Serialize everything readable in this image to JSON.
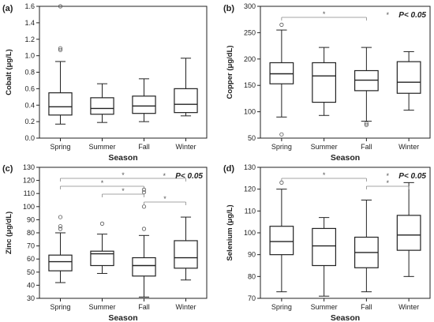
{
  "chart_data": [
    {
      "panel_label": "(a)",
      "type": "boxplot",
      "xlabel": "Season",
      "ylabel": "Cobalt (μg/L)",
      "ylim": [
        0.0,
        1.6
      ],
      "yticks": [
        "0.0",
        "0.2",
        "0.4",
        "0.6",
        "0.8",
        "1.0",
        "1.2",
        "1.4",
        "1.6"
      ],
      "categories": [
        "Spring",
        "Summer",
        "Fall",
        "Winter"
      ],
      "boxes": [
        {
          "whisker_low": 0.17,
          "q1": 0.28,
          "median": 0.38,
          "q3": 0.55,
          "whisker_high": 0.93,
          "outliers": [
            1.07,
            1.09,
            1.6
          ]
        },
        {
          "whisker_low": 0.19,
          "q1": 0.29,
          "median": 0.36,
          "q3": 0.49,
          "whisker_high": 0.66,
          "outliers": []
        },
        {
          "whisker_low": 0.2,
          "q1": 0.3,
          "median": 0.39,
          "q3": 0.51,
          "whisker_high": 0.72,
          "outliers": []
        },
        {
          "whisker_low": 0.27,
          "q1": 0.31,
          "median": 0.41,
          "q3": 0.6,
          "whisker_high": 0.97,
          "outliers": []
        }
      ],
      "significance_label": "",
      "significance_pairs": []
    },
    {
      "panel_label": "(b)",
      "type": "boxplot",
      "xlabel": "Season",
      "ylabel": "Copper (μg/dL)",
      "ylim": [
        50,
        300
      ],
      "yticks": [
        "50",
        "100",
        "150",
        "200",
        "250",
        "300"
      ],
      "categories": [
        "Spring",
        "Summer",
        "Fall",
        "Winter"
      ],
      "boxes": [
        {
          "whisker_low": 90,
          "q1": 153,
          "median": 172,
          "q3": 193,
          "whisker_high": 255,
          "outliers": [
            57,
            265
          ]
        },
        {
          "whisker_low": 93,
          "q1": 118,
          "median": 168,
          "q3": 193,
          "whisker_high": 222,
          "outliers": []
        },
        {
          "whisker_low": 82,
          "q1": 140,
          "median": 160,
          "q3": 178,
          "whisker_high": 222,
          "outliers": [
            75,
            78
          ]
        },
        {
          "whisker_low": 103,
          "q1": 135,
          "median": 156,
          "q3": 195,
          "whisker_high": 214,
          "outliers": []
        }
      ],
      "significance_label": "P< 0.05",
      "significance_pairs": [
        [
          0,
          2
        ]
      ]
    },
    {
      "panel_label": "(c)",
      "type": "boxplot",
      "xlabel": "Season",
      "ylabel": "Zinc (μg/dL)",
      "ylim": [
        30,
        130
      ],
      "yticks": [
        "30",
        "40",
        "50",
        "60",
        "70",
        "80",
        "90",
        "100",
        "110",
        "120",
        "130"
      ],
      "categories": [
        "Spring",
        "Summer",
        "Fall",
        "Winter"
      ],
      "boxes": [
        {
          "whisker_low": 42,
          "q1": 51,
          "median": 58,
          "q3": 63,
          "whisker_high": 80,
          "outliers": [
            83,
            85,
            92
          ]
        },
        {
          "whisker_low": 49,
          "q1": 55,
          "median": 64,
          "q3": 66,
          "whisker_high": 79,
          "outliers": [
            87
          ]
        },
        {
          "whisker_low": 31,
          "q1": 47,
          "median": 55,
          "q3": 61,
          "whisker_high": 78,
          "outliers": [
            83,
            100,
            111,
            113
          ]
        },
        {
          "whisker_low": 44,
          "q1": 53,
          "median": 61,
          "q3": 74,
          "whisker_high": 92,
          "outliers": []
        }
      ],
      "significance_label": "P< 0.05",
      "significance_pairs": [
        [
          0,
          3
        ],
        [
          0,
          2
        ],
        [
          1,
          2
        ],
        [
          2,
          3
        ]
      ]
    },
    {
      "panel_label": "(d)",
      "type": "boxplot",
      "xlabel": "Season",
      "ylabel": "Selenium (μg/L)",
      "ylim": [
        70,
        130
      ],
      "yticks": [
        "70",
        "80",
        "90",
        "100",
        "110",
        "120",
        "130"
      ],
      "categories": [
        "Spring",
        "Summer",
        "Fall",
        "Winter"
      ],
      "boxes": [
        {
          "whisker_low": 73,
          "q1": 90,
          "median": 96,
          "q3": 103,
          "whisker_high": 120,
          "outliers": [
            123
          ]
        },
        {
          "whisker_low": 71,
          "q1": 85,
          "median": 94,
          "q3": 102,
          "whisker_high": 107,
          "outliers": []
        },
        {
          "whisker_low": 73,
          "q1": 84,
          "median": 91,
          "q3": 98,
          "whisker_high": 115,
          "outliers": []
        },
        {
          "whisker_low": 80,
          "q1": 92,
          "median": 99,
          "q3": 108,
          "whisker_high": 123,
          "outliers": []
        }
      ],
      "significance_label": "P< 0.05",
      "significance_pairs": [
        [
          0,
          2
        ],
        [
          2,
          3
        ]
      ]
    }
  ]
}
